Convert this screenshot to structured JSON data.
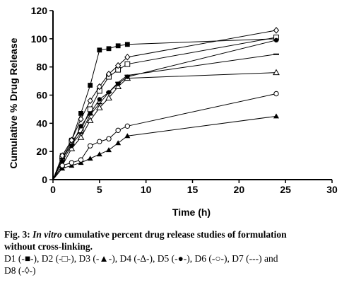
{
  "chart_data": {
    "type": "line",
    "xlabel": "Time (h)",
    "ylabel": "Cumulative % Drug  Release",
    "xlim": [
      0,
      30
    ],
    "ylim": [
      0,
      120
    ],
    "xticks": [
      0,
      5,
      10,
      15,
      20,
      25,
      30
    ],
    "yticks": [
      0,
      20,
      40,
      60,
      80,
      100,
      120
    ],
    "x": [
      0,
      1,
      2,
      3,
      4,
      5,
      6,
      7,
      8,
      24
    ],
    "series": [
      {
        "marker": "filled-square",
        "values": [
          0,
          17,
          28,
          47,
          67,
          92,
          93,
          95,
          96,
          100
        ]
      },
      {
        "marker": "open-square",
        "values": [
          0,
          15,
          27,
          35,
          50,
          63,
          73,
          78,
          82,
          101
        ]
      },
      {
        "marker": "filled-triangle",
        "values": [
          0,
          8,
          10,
          12,
          15,
          18,
          21,
          26,
          31,
          45
        ]
      },
      {
        "marker": "open-triangle",
        "values": [
          0,
          10,
          22,
          30,
          42,
          51,
          58,
          66,
          72,
          76
        ]
      },
      {
        "marker": "filled-circle",
        "values": [
          0,
          13,
          24,
          38,
          47,
          57,
          62,
          68,
          73,
          99
        ]
      },
      {
        "marker": "open-circle",
        "values": [
          0,
          10,
          12,
          14,
          24,
          27,
          29,
          35,
          38,
          61
        ]
      },
      {
        "marker": "dash",
        "values": [
          0,
          15,
          25,
          33,
          46,
          54,
          62,
          69,
          74,
          89
        ]
      },
      {
        "marker": "open-diamond",
        "values": [
          0,
          17,
          28,
          43,
          56,
          66,
          75,
          81,
          87,
          106
        ]
      }
    ]
  },
  "caption": {
    "label": "Fig. 3:",
    "italic": "In vitro",
    "text_line1": " cumulative percent drug release studies of formulation",
    "text_line2": "without cross-linking.",
    "legend_line1": "D1 (-■-), D2 (-□-), D3 (-▲-), D4 (-Δ-), D5 (-●-), D6 (-○-), D7 (---) and",
    "legend_line2": "D8 (-◊-)"
  }
}
